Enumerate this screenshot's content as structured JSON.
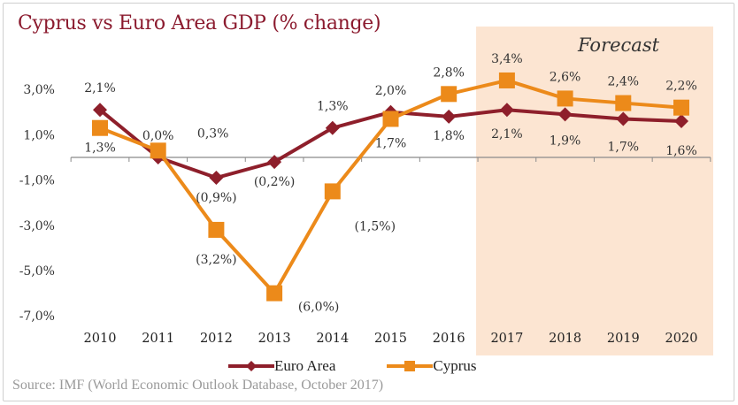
{
  "title": "Cyprus vs Euro Area GDP (% change)",
  "source": "Source: IMF (World Economic Outlook Database, October 2017)",
  "forecast_label": "Forecast",
  "colors": {
    "title": "#8b1a2e",
    "euro_area": "#8e1f2b",
    "cyprus": "#ec8a1a",
    "forecast_band": "#fce5d2",
    "axis": "#8a8a8a"
  },
  "chart_data": {
    "type": "line",
    "title": "Cyprus vs Euro Area GDP (% change)",
    "xlabel": "",
    "ylabel": "",
    "x": [
      "2010",
      "2011",
      "2012",
      "2013",
      "2014",
      "2015",
      "2016",
      "2017",
      "2018",
      "2019",
      "2020"
    ],
    "ylim": [
      -7,
      3
    ],
    "yticks": [
      3,
      1,
      -1,
      -3,
      -5,
      -7
    ],
    "ytick_labels": [
      "3,0%",
      "1,0%",
      "-1,0%",
      "-3,0%",
      "-5,0%",
      "-7,0%"
    ],
    "grid": false,
    "legend_position": "bottom",
    "forecast_from": "2017",
    "series": [
      {
        "name": "Euro Area",
        "marker": "diamond",
        "values": [
          2.1,
          0.0,
          -0.9,
          -0.2,
          1.3,
          2.0,
          1.8,
          2.1,
          1.9,
          1.7,
          1.6
        ],
        "labels": [
          "2,1%",
          "0,0%",
          "(0,9%)",
          "(0,2%)",
          "1,3%",
          "2,0%",
          "1,8%",
          "2,1%",
          "1,9%",
          "1,7%",
          "1,6%"
        ]
      },
      {
        "name": "Cyprus",
        "marker": "square",
        "values": [
          1.3,
          0.3,
          -3.2,
          -6.0,
          -1.5,
          1.7,
          2.8,
          3.4,
          2.6,
          2.4,
          2.2
        ],
        "labels": [
          "1,3%",
          "0,3%",
          "(3,2%)",
          "(6,0%)",
          "(1,5%)",
          "1,7%",
          "2,8%",
          "3,4%",
          "2,6%",
          "2,4%",
          "2,2%"
        ]
      }
    ]
  }
}
